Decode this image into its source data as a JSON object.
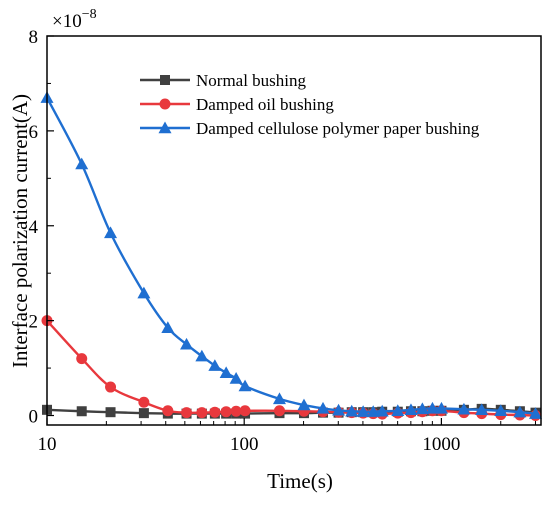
{
  "chart_data": {
    "type": "line",
    "x_scale": "log",
    "xlabel": "Time(s)",
    "ylabel": "Interface polarization current(A)",
    "y_multiplier": "×10",
    "y_multiplier_exp": "−8",
    "xlim": [
      10,
      3200
    ],
    "ylim": [
      -0.2,
      8
    ],
    "x_ticks": [
      10,
      100,
      1000
    ],
    "x_tick_labels": [
      "10",
      "100",
      "1000"
    ],
    "y_ticks": [
      0,
      2,
      4,
      6,
      8
    ],
    "y_tick_labels": [
      "0",
      "2",
      "4",
      "6",
      "8"
    ],
    "legend_position": "top-right",
    "grid": false,
    "series": [
      {
        "name": "Normal bushing",
        "color": "#404040",
        "marker": "square",
        "x": [
          10,
          15,
          21,
          31,
          41,
          51,
          61,
          71,
          81,
          91,
          101,
          151,
          201,
          251,
          301,
          351,
          401,
          451,
          501,
          601,
          701,
          801,
          901,
          1001,
          1301,
          1601,
          2001,
          2501,
          3001
        ],
        "y": [
          0.12,
          0.09,
          0.07,
          0.05,
          0.04,
          0.04,
          0.04,
          0.04,
          0.04,
          0.04,
          0.04,
          0.05,
          0.05,
          0.06,
          0.06,
          0.07,
          0.07,
          0.07,
          0.08,
          0.08,
          0.09,
          0.09,
          0.1,
          0.1,
          0.12,
          0.14,
          0.12,
          0.09,
          0.06
        ]
      },
      {
        "name": "Damped oil bushing",
        "color": "#e8383d",
        "marker": "circle",
        "x": [
          10,
          15,
          21,
          31,
          41,
          51,
          61,
          71,
          81,
          91,
          101,
          151,
          201,
          251,
          301,
          351,
          401,
          451,
          501,
          601,
          701,
          801,
          901,
          1001,
          1301,
          1601,
          2001,
          2501,
          3001
        ],
        "y": [
          2.0,
          1.2,
          0.6,
          0.28,
          0.1,
          0.06,
          0.06,
          0.07,
          0.08,
          0.09,
          0.1,
          0.1,
          0.09,
          0.08,
          0.07,
          0.06,
          0.05,
          0.04,
          0.03,
          0.05,
          0.06,
          0.08,
          0.1,
          0.1,
          0.06,
          0.04,
          0.02,
          0.01,
          0.0
        ]
      },
      {
        "name": "Damped cellulose polymer paper bushing",
        "color": "#1f6fd1",
        "marker": "triangle",
        "x": [
          10,
          15,
          21,
          31,
          41,
          51,
          61,
          71,
          81,
          91,
          101,
          151,
          201,
          251,
          301,
          351,
          401,
          451,
          501,
          601,
          701,
          801,
          901,
          1001,
          1301,
          1601,
          2001,
          2501,
          3001
        ],
        "y": [
          6.7,
          5.3,
          3.85,
          2.58,
          1.85,
          1.5,
          1.25,
          1.05,
          0.9,
          0.78,
          0.62,
          0.35,
          0.22,
          0.15,
          0.11,
          0.09,
          0.08,
          0.08,
          0.09,
          0.1,
          0.12,
          0.14,
          0.15,
          0.15,
          0.13,
          0.12,
          0.1,
          0.07,
          0.04
        ]
      }
    ]
  }
}
